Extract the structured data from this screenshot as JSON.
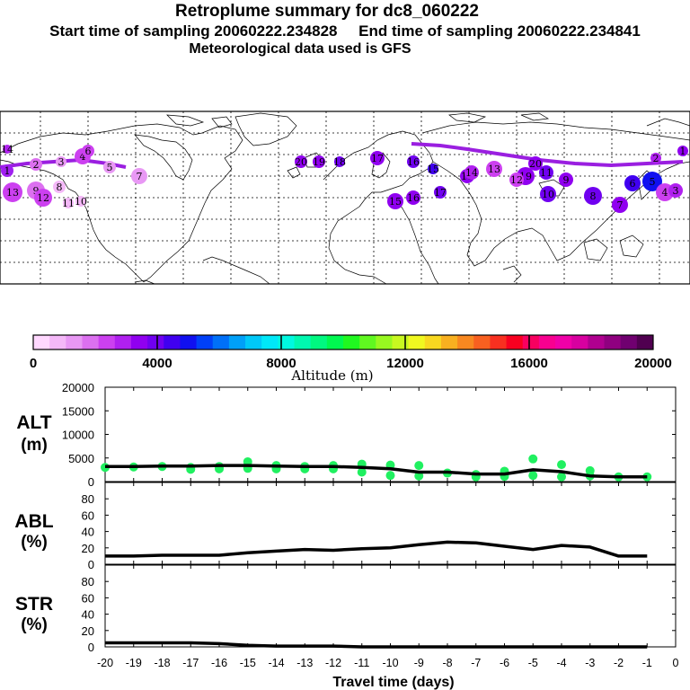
{
  "header": {
    "title": "Retroplume summary for dc8_060222",
    "start_label": "Start time of sampling 20060222.234828",
    "end_label": "End time of sampling 20060222.234841",
    "met_label": "Meteorological data used is GFS"
  },
  "colorbar": {
    "label": "Altitude (m)",
    "ticks": [
      "0",
      "4000",
      "8000",
      "12000",
      "16000",
      "20000"
    ],
    "colors": [
      "#ffd8ff",
      "#f4b8f8",
      "#e898f4",
      "#dc70f0",
      "#cc40f0",
      "#b020f0",
      "#9000f0",
      "#7000f0",
      "#4000f0",
      "#1010f0",
      "#0040f8",
      "#0070f8",
      "#00a0f8",
      "#00c8f8",
      "#00e8f8",
      "#00f8e0",
      "#00f8b0",
      "#00f880",
      "#00f850",
      "#20f820",
      "#60f820",
      "#98f820",
      "#c8f820",
      "#f0f820",
      "#f8d820",
      "#f8b020",
      "#f88820",
      "#f86020",
      "#f83020",
      "#f80020",
      "#f80060",
      "#f80090",
      "#f000a8",
      "#d800a0",
      "#b00090",
      "#900080",
      "#700070",
      "#500050"
    ]
  },
  "map": {
    "trajectory_color": "#9a1fe0",
    "markers": [
      {
        "n": "1",
        "c": "#a020f0"
      },
      {
        "n": "2",
        "c": "#dc70f0"
      },
      {
        "n": "3",
        "c": "#e898f4"
      },
      {
        "n": "4",
        "c": "#cc40f0"
      },
      {
        "n": "5",
        "c": "#e898f4"
      },
      {
        "n": "6",
        "c": "#cc40f0"
      },
      {
        "n": "7",
        "c": "#e898f4"
      },
      {
        "n": "8",
        "c": "#f4b8f8"
      },
      {
        "n": "9",
        "c": "#dc70f0"
      },
      {
        "n": "10",
        "c": "#f4b8f8"
      },
      {
        "n": "11",
        "c": "#f4b8f8"
      },
      {
        "n": "12",
        "c": "#cc40f0"
      },
      {
        "n": "13",
        "c": "#cc40f0"
      },
      {
        "n": "14",
        "c": "#b020f0"
      },
      {
        "n": "15",
        "c": "#9000f0"
      },
      {
        "n": "16",
        "c": "#9000f0"
      },
      {
        "n": "17",
        "c": "#7000f0"
      },
      {
        "n": "18",
        "c": "#9000f0"
      },
      {
        "n": "19",
        "c": "#9000f0"
      },
      {
        "n": "20",
        "c": "#9000f0"
      },
      {
        "n": "20",
        "c": "#9000f0"
      },
      {
        "n": "19",
        "c": "#9000f0"
      },
      {
        "n": "18",
        "c": "#7000f0"
      },
      {
        "n": "17",
        "c": "#9000f0"
      },
      {
        "n": "16",
        "c": "#7000f0"
      },
      {
        "n": "15",
        "c": "#4000f0"
      },
      {
        "n": "14",
        "c": "#b020f0"
      },
      {
        "n": "13",
        "c": "#cc40f0"
      },
      {
        "n": "12",
        "c": "#cc40f0"
      },
      {
        "n": "11",
        "c": "#7000f0"
      },
      {
        "n": "10",
        "c": "#7000f0"
      },
      {
        "n": "9",
        "c": "#9000f0"
      },
      {
        "n": "8",
        "c": "#7000f0"
      },
      {
        "n": "7",
        "c": "#9000f0"
      },
      {
        "n": "6",
        "c": "#4000f0"
      },
      {
        "n": "5",
        "c": "#1010f0"
      },
      {
        "n": "4",
        "c": "#cc40f0"
      },
      {
        "n": "3",
        "c": "#b020f0"
      },
      {
        "n": "2",
        "c": "#b020f0"
      },
      {
        "n": "1",
        "c": "#9000f0"
      }
    ]
  },
  "chart_data": [
    {
      "type": "line",
      "panel": "ALT",
      "ylabel": "ALT",
      "yunit": "(m)",
      "ylim": [
        0,
        20000
      ],
      "yticks": [
        0,
        5000,
        10000,
        15000,
        20000
      ],
      "xlim": [
        -20,
        0
      ],
      "line": {
        "x": [
          -20,
          -19,
          -18,
          -17,
          -16,
          -15,
          -14,
          -13,
          -12,
          -11,
          -10,
          -9,
          -8,
          -7,
          -6,
          -5,
          -4,
          -3,
          -2,
          -1
        ],
        "y": [
          3200,
          3200,
          3300,
          3300,
          3400,
          3400,
          3300,
          3200,
          3200,
          3000,
          2700,
          2000,
          2000,
          1600,
          1600,
          2500,
          2100,
          1200,
          1000,
          1000
        ]
      },
      "points": [
        {
          "x": -20,
          "y": 3000
        },
        {
          "x": -19,
          "y": 3100
        },
        {
          "x": -18,
          "y": 3200
        },
        {
          "x": -17,
          "y": 3000
        },
        {
          "x": -17,
          "y": 2600
        },
        {
          "x": -16,
          "y": 3200
        },
        {
          "x": -16,
          "y": 2700
        },
        {
          "x": -15,
          "y": 4200
        },
        {
          "x": -15,
          "y": 2800
        },
        {
          "x": -14,
          "y": 3400
        },
        {
          "x": -14,
          "y": 2700
        },
        {
          "x": -13,
          "y": 3200
        },
        {
          "x": -13,
          "y": 2700
        },
        {
          "x": -12,
          "y": 3400
        },
        {
          "x": -12,
          "y": 2700
        },
        {
          "x": -11,
          "y": 3700
        },
        {
          "x": -11,
          "y": 2000
        },
        {
          "x": -10,
          "y": 3500
        },
        {
          "x": -10,
          "y": 1300
        },
        {
          "x": -9,
          "y": 3400
        },
        {
          "x": -9,
          "y": 1200
        },
        {
          "x": -8,
          "y": 1800
        },
        {
          "x": -7,
          "y": 1500
        },
        {
          "x": -7,
          "y": 1000
        },
        {
          "x": -6,
          "y": 2200
        },
        {
          "x": -6,
          "y": 1100
        },
        {
          "x": -5,
          "y": 4800
        },
        {
          "x": -5,
          "y": 1300
        },
        {
          "x": -4,
          "y": 3600
        },
        {
          "x": -4,
          "y": 1000
        },
        {
          "x": -3,
          "y": 2300
        },
        {
          "x": -3,
          "y": 1200
        },
        {
          "x": -2,
          "y": 1000
        },
        {
          "x": -1,
          "y": 1000
        }
      ],
      "point_color": "#20f060"
    },
    {
      "type": "line",
      "panel": "ABL",
      "ylabel": "ABL",
      "yunit": "(%)",
      "ylim": [
        0,
        100
      ],
      "yticks": [
        0,
        20,
        40,
        60,
        80
      ],
      "xlim": [
        -20,
        0
      ],
      "line": {
        "x": [
          -20,
          -19,
          -18,
          -17,
          -16,
          -15,
          -14,
          -13,
          -12,
          -11,
          -10,
          -9,
          -8,
          -7,
          -6,
          -5,
          -4,
          -3,
          -2,
          -1
        ],
        "y": [
          10,
          10,
          11,
          11,
          11,
          14,
          16,
          18,
          17,
          19,
          20,
          24,
          27,
          26,
          22,
          18,
          23,
          21,
          10,
          10
        ]
      }
    },
    {
      "type": "line",
      "panel": "STR",
      "ylabel": "STR",
      "yunit": "(%)",
      "ylim": [
        0,
        100
      ],
      "yticks": [
        0,
        20,
        40,
        60,
        80
      ],
      "xlim": [
        -20,
        0
      ],
      "xlabel": "Travel time (days)",
      "xticks": [
        -20,
        -19,
        -18,
        -17,
        -16,
        -15,
        -14,
        -13,
        -12,
        -11,
        -10,
        -9,
        -8,
        -7,
        -6,
        -5,
        -4,
        -3,
        -2,
        -1,
        0
      ],
      "line": {
        "x": [
          -20,
          -19,
          -18,
          -17,
          -16,
          -15,
          -14,
          -13,
          -12,
          -11,
          -10,
          -9,
          -8,
          -7,
          -6,
          -5,
          -4,
          -3,
          -2,
          -1
        ],
        "y": [
          5,
          5,
          5,
          5,
          4,
          2,
          1,
          1,
          1,
          0,
          0,
          0,
          0,
          0,
          0,
          0,
          0,
          0,
          0,
          0
        ]
      }
    }
  ]
}
